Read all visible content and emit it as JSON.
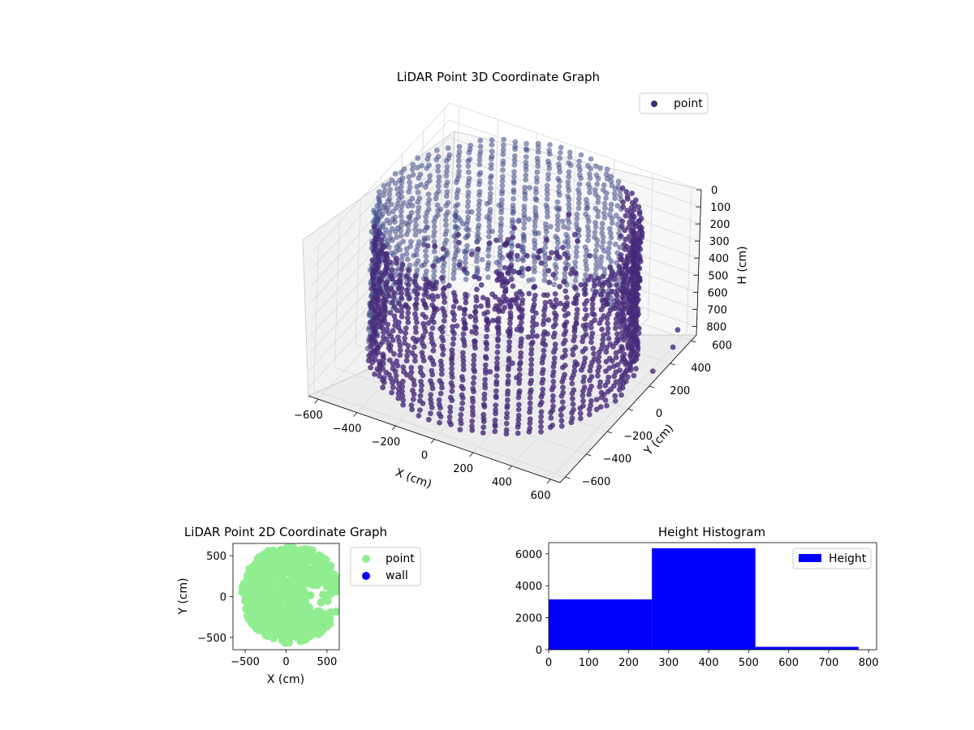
{
  "colors": {
    "point_3d": "#472a7a",
    "point_3d_alt": "#3e4a89",
    "point_2d": "#90ee90",
    "wall": "#0000ff",
    "histogram": "#0000ff",
    "pane": "#f2f2f2",
    "grid": "#d9d9d9"
  },
  "chart_data": [
    {
      "type": "scatter",
      "title": "LiDAR Point 3D Coordinate Graph",
      "xlabel": "X (cm)",
      "ylabel": "Y (cm)",
      "zlabel": "H (cm)",
      "xlim": [
        -650,
        650
      ],
      "ylim": [
        -650,
        650
      ],
      "zlim": [
        850,
        0
      ],
      "z_inverted": true,
      "xticks": [
        -600,
        -400,
        -200,
        0,
        200,
        400,
        600
      ],
      "yticks": [
        -600,
        -400,
        -200,
        0,
        200,
        400,
        600
      ],
      "zticks": [
        0,
        100,
        200,
        300,
        400,
        500,
        600,
        700,
        800
      ],
      "legend": [
        {
          "label": "point",
          "color": "#472a7a"
        }
      ],
      "legend_position": "upper-right",
      "grid": true,
      "series": [
        {
          "name": "point",
          "description": "cylindrical wall of LiDAR returns, radius about 600 cm, height 0 to 800 cm, plus scattered interior points",
          "wall_radius": 600,
          "wall_height_range": [
            0,
            800
          ],
          "outlier_points": [
            [
              620,
              480,
              820
            ],
            [
              640,
              250,
              800
            ],
            [
              600,
              560,
              780
            ]
          ]
        }
      ]
    },
    {
      "type": "scatter",
      "title": "LiDAR Point 2D Coordinate Graph",
      "xlabel": "X (cm)",
      "ylabel": "Y (cm)",
      "xlim": [
        -650,
        650
      ],
      "ylim": [
        -650,
        650
      ],
      "xticks": [
        -500,
        0,
        500
      ],
      "yticks": [
        -500,
        0,
        500
      ],
      "legend": [
        {
          "label": "point",
          "color": "#90ee90"
        },
        {
          "label": "wall",
          "color": "#0000ff"
        }
      ],
      "legend_position": "outside-right",
      "series": [
        {
          "name": "point",
          "description": "filled disc of points, radius about 600 cm"
        },
        {
          "name": "wall",
          "description": "no visible points"
        }
      ]
    },
    {
      "type": "bar",
      "title": "Height Histogram",
      "xlim": [
        0,
        820
      ],
      "ylim": [
        0,
        6700
      ],
      "xticks": [
        0,
        100,
        200,
        300,
        400,
        500,
        600,
        700,
        800
      ],
      "yticks": [
        0,
        2000,
        4000,
        6000
      ],
      "legend": [
        {
          "label": "Height",
          "color": "#0000ff"
        }
      ],
      "legend_position": "upper-right",
      "bins": [
        0,
        258,
        517,
        775
      ],
      "counts": [
        3150,
        6350,
        180
      ]
    }
  ]
}
